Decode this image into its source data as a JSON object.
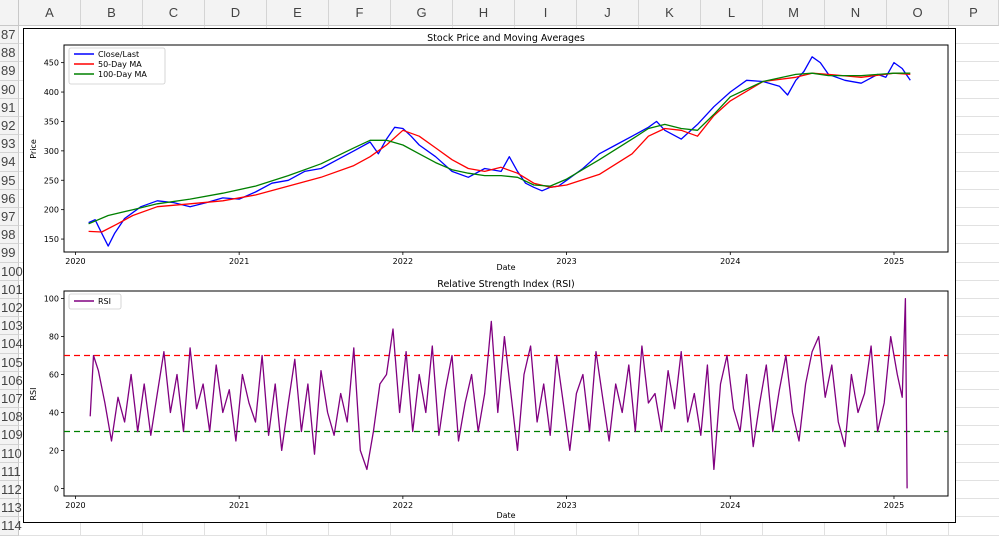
{
  "sheet": {
    "columns": [
      "A",
      "B",
      "C",
      "D",
      "E",
      "F",
      "G",
      "H",
      "I",
      "J",
      "K",
      "L",
      "M",
      "N",
      "O",
      "P"
    ],
    "rows": [
      "87",
      "88",
      "89",
      "90",
      "91",
      "92",
      "93",
      "94",
      "95",
      "96",
      "97",
      "98",
      "99",
      "100",
      "101",
      "102",
      "103",
      "104",
      "105",
      "106",
      "107",
      "108",
      "109",
      "110",
      "111",
      "112",
      "113",
      "114"
    ]
  },
  "chart_data": [
    {
      "type": "line",
      "title": "Stock Price and Moving Averages",
      "xlabel": "Date",
      "ylabel": "Price",
      "x_ticks": [
        "2020",
        "2021",
        "2022",
        "2023",
        "2024",
        "2025"
      ],
      "y_ticks": [
        150,
        200,
        250,
        300,
        350,
        400,
        450
      ],
      "xlim": [
        2019.93,
        2025.33
      ],
      "ylim": [
        128,
        480
      ],
      "grid": false,
      "legend_position": "top-left",
      "series": [
        {
          "name": "Close/Last",
          "color": "#0000ff",
          "x": [
            2020.08,
            2020.12,
            2020.16,
            2020.2,
            2020.24,
            2020.3,
            2020.4,
            2020.5,
            2020.6,
            2020.7,
            2020.8,
            2020.9,
            2021.0,
            2021.1,
            2021.2,
            2021.3,
            2021.4,
            2021.5,
            2021.6,
            2021.7,
            2021.8,
            2021.85,
            2021.9,
            2021.95,
            2022.0,
            2022.05,
            2022.1,
            2022.2,
            2022.3,
            2022.4,
            2022.5,
            2022.6,
            2022.65,
            2022.7,
            2022.75,
            2022.8,
            2022.85,
            2022.9,
            2022.95,
            2023.0,
            2023.1,
            2023.2,
            2023.3,
            2023.4,
            2023.5,
            2023.55,
            2023.6,
            2023.7,
            2023.8,
            2023.9,
            2024.0,
            2024.1,
            2024.2,
            2024.3,
            2024.35,
            2024.4,
            2024.45,
            2024.5,
            2024.55,
            2024.6,
            2024.7,
            2024.8,
            2024.9,
            2024.95,
            2025.0,
            2025.05,
            2025.1
          ],
          "y": [
            178,
            183,
            160,
            138,
            160,
            185,
            205,
            215,
            212,
            205,
            212,
            220,
            218,
            230,
            245,
            250,
            265,
            270,
            285,
            300,
            315,
            295,
            320,
            340,
            338,
            325,
            310,
            290,
            265,
            255,
            270,
            265,
            290,
            265,
            245,
            238,
            232,
            238,
            240,
            250,
            270,
            295,
            310,
            325,
            340,
            350,
            335,
            320,
            345,
            375,
            400,
            420,
            418,
            410,
            395,
            420,
            435,
            460,
            450,
            430,
            420,
            415,
            430,
            425,
            450,
            440,
            420
          ]
        },
        {
          "name": "50-Day MA",
          "color": "#ff0000",
          "x": [
            2020.08,
            2020.16,
            2020.25,
            2020.35,
            2020.5,
            2020.7,
            2020.9,
            2021.1,
            2021.3,
            2021.5,
            2021.7,
            2021.8,
            2021.9,
            2022.0,
            2022.1,
            2022.2,
            2022.3,
            2022.4,
            2022.5,
            2022.6,
            2022.7,
            2022.8,
            2022.9,
            2023.0,
            2023.2,
            2023.4,
            2023.5,
            2023.6,
            2023.7,
            2023.8,
            2023.9,
            2024.0,
            2024.2,
            2024.4,
            2024.5,
            2024.6,
            2024.8,
            2025.0,
            2025.1
          ],
          "y": [
            163,
            162,
            175,
            190,
            205,
            210,
            215,
            225,
            240,
            255,
            275,
            290,
            310,
            335,
            325,
            305,
            285,
            270,
            265,
            272,
            262,
            245,
            238,
            242,
            260,
            295,
            325,
            338,
            335,
            325,
            360,
            385,
            418,
            425,
            432,
            430,
            425,
            432,
            430
          ]
        },
        {
          "name": "100-Day MA",
          "color": "#008000",
          "x": [
            2020.08,
            2020.2,
            2020.35,
            2020.5,
            2020.7,
            2020.9,
            2021.1,
            2021.3,
            2021.5,
            2021.7,
            2021.8,
            2021.9,
            2022.0,
            2022.1,
            2022.2,
            2022.3,
            2022.4,
            2022.5,
            2022.6,
            2022.7,
            2022.8,
            2022.9,
            2023.0,
            2023.2,
            2023.4,
            2023.5,
            2023.6,
            2023.7,
            2023.8,
            2023.9,
            2024.0,
            2024.2,
            2024.4,
            2024.5,
            2024.6,
            2024.8,
            2025.0,
            2025.1
          ],
          "y": [
            176,
            190,
            200,
            210,
            218,
            228,
            240,
            258,
            278,
            305,
            318,
            318,
            310,
            295,
            280,
            268,
            262,
            258,
            258,
            255,
            242,
            240,
            252,
            285,
            320,
            338,
            345,
            338,
            335,
            362,
            392,
            418,
            430,
            432,
            428,
            428,
            432,
            432
          ]
        }
      ]
    },
    {
      "type": "line",
      "title": "Relative Strength Index (RSI)",
      "xlabel": "Date",
      "ylabel": "RSI",
      "x_ticks": [
        "2020",
        "2021",
        "2022",
        "2023",
        "2024",
        "2025"
      ],
      "y_ticks": [
        0,
        20,
        40,
        60,
        80,
        100
      ],
      "xlim": [
        2019.93,
        2025.33
      ],
      "ylim": [
        -4,
        104
      ],
      "grid": false,
      "legend_position": "top-left",
      "series": [
        {
          "name": "RSI",
          "color": "#800080",
          "x": [
            2020.09,
            2020.11,
            2020.14,
            2020.18,
            2020.22,
            2020.26,
            2020.3,
            2020.34,
            2020.38,
            2020.42,
            2020.46,
            2020.5,
            2020.54,
            2020.58,
            2020.62,
            2020.66,
            2020.7,
            2020.74,
            2020.78,
            2020.82,
            2020.86,
            2020.9,
            2020.94,
            2020.98,
            2021.02,
            2021.06,
            2021.1,
            2021.14,
            2021.18,
            2021.22,
            2021.26,
            2021.3,
            2021.34,
            2021.38,
            2021.42,
            2021.46,
            2021.5,
            2021.54,
            2021.58,
            2021.62,
            2021.66,
            2021.7,
            2021.74,
            2021.78,
            2021.82,
            2021.86,
            2021.9,
            2021.94,
            2021.98,
            2022.02,
            2022.06,
            2022.1,
            2022.14,
            2022.18,
            2022.22,
            2022.26,
            2022.3,
            2022.34,
            2022.38,
            2022.42,
            2022.46,
            2022.5,
            2022.54,
            2022.58,
            2022.62,
            2022.66,
            2022.7,
            2022.74,
            2022.78,
            2022.82,
            2022.86,
            2022.9,
            2022.94,
            2022.98,
            2023.02,
            2023.06,
            2023.1,
            2023.14,
            2023.18,
            2023.22,
            2023.26,
            2023.3,
            2023.34,
            2023.38,
            2023.42,
            2023.46,
            2023.5,
            2023.54,
            2023.58,
            2023.62,
            2023.66,
            2023.7,
            2023.74,
            2023.78,
            2023.82,
            2023.86,
            2023.9,
            2023.94,
            2023.98,
            2024.02,
            2024.06,
            2024.1,
            2024.14,
            2024.18,
            2024.22,
            2024.26,
            2024.3,
            2024.34,
            2024.38,
            2024.42,
            2024.46,
            2024.5,
            2024.54,
            2024.58,
            2024.62,
            2024.66,
            2024.7,
            2024.74,
            2024.78,
            2024.82,
            2024.86,
            2024.9,
            2024.94,
            2024.98,
            2025.02,
            2025.05,
            2025.07,
            2025.08
          ],
          "y": [
            38,
            70,
            62,
            45,
            25,
            48,
            35,
            60,
            30,
            55,
            28,
            50,
            72,
            40,
            60,
            30,
            74,
            42,
            55,
            30,
            65,
            40,
            52,
            25,
            60,
            45,
            35,
            70,
            28,
            55,
            20,
            45,
            68,
            30,
            55,
            18,
            62,
            40,
            28,
            50,
            35,
            74,
            20,
            10,
            30,
            55,
            60,
            84,
            40,
            72,
            30,
            60,
            40,
            75,
            28,
            52,
            70,
            25,
            45,
            60,
            30,
            50,
            88,
            40,
            80,
            50,
            20,
            60,
            75,
            35,
            55,
            28,
            70,
            45,
            20,
            50,
            60,
            30,
            72,
            48,
            25,
            55,
            40,
            65,
            30,
            75,
            45,
            50,
            30,
            62,
            42,
            72,
            35,
            50,
            28,
            65,
            10,
            55,
            70,
            42,
            30,
            60,
            22,
            45,
            65,
            30,
            52,
            70,
            40,
            25,
            55,
            72,
            80,
            48,
            65,
            35,
            22,
            60,
            40,
            50,
            75,
            30,
            45,
            80,
            60,
            48,
            100,
            0
          ]
        }
      ],
      "reference_lines": [
        {
          "y": 70,
          "color": "#ff0000",
          "style": "dashed"
        },
        {
          "y": 30,
          "color": "#008000",
          "style": "dashed"
        }
      ]
    }
  ]
}
